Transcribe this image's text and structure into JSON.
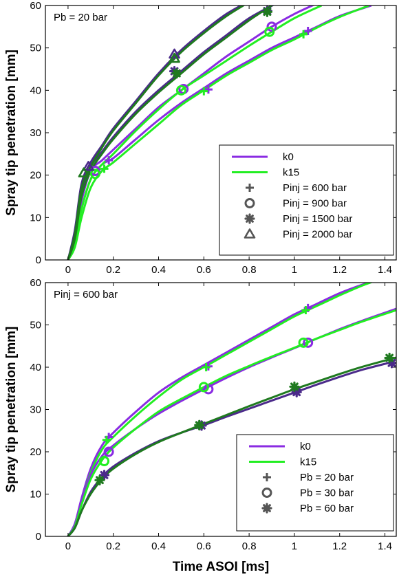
{
  "colors": {
    "k0": "#8a2be2",
    "k15": "#22ee22",
    "k0_dark": "#4b2a8a",
    "k15_dark": "#1f7a1f",
    "marker_legend": "#555555"
  },
  "chart_data": [
    {
      "type": "line",
      "annotation": "Pb = 20 bar",
      "xlabel": "",
      "ylabel": "Spray tip penetration [mm]",
      "xlim": [
        -0.1,
        1.45
      ],
      "ylim": [
        0,
        60
      ],
      "xticks": [
        "0",
        "0.2",
        "0.4",
        "0.6",
        "0.8",
        "1",
        "1.2",
        "1.4"
      ],
      "yticks": [
        "0",
        "10",
        "20",
        "30",
        "40",
        "50",
        "60"
      ],
      "grid": false,
      "legend_position": "bottom-right",
      "legend": {
        "lines": [
          {
            "label": "k0",
            "color": "k0"
          },
          {
            "label": "k15",
            "color": "k15"
          }
        ],
        "markers": [
          {
            "label": "Pinj = 600 bar",
            "marker": "plus"
          },
          {
            "label": "Pinj = 900 bar",
            "marker": "circle"
          },
          {
            "label": "Pinj = 1500 bar",
            "marker": "star"
          },
          {
            "label": "Pinj = 2000 bar",
            "marker": "triangle"
          }
        ]
      },
      "series": [
        {
          "model": "k0",
          "group": "Pinj = 600 bar",
          "color": "k0",
          "marker": "plus",
          "x": [
            0,
            0.03,
            0.06,
            0.1,
            0.15,
            0.2,
            0.3,
            0.4,
            0.5,
            0.6,
            0.7,
            0.8,
            0.9,
            1.0,
            1.1,
            1.2,
            1.34
          ],
          "y": [
            0,
            4,
            12,
            19,
            22.5,
            24,
            28.5,
            33,
            37,
            40.5,
            44,
            47,
            50,
            52.5,
            55,
            57.5,
            60
          ],
          "markers_x": [
            0.18,
            0.62,
            1.06
          ],
          "markers_y": [
            23.5,
            40.2,
            54
          ]
        },
        {
          "model": "k15",
          "group": "Pinj = 600 bar",
          "color": "k15",
          "marker": "plus",
          "x": [
            0,
            0.03,
            0.06,
            0.1,
            0.15,
            0.2,
            0.3,
            0.4,
            0.5,
            0.6,
            0.7,
            0.8,
            0.9,
            1.0,
            1.1,
            1.2,
            1.33
          ],
          "y": [
            0,
            3,
            10,
            17,
            21,
            23,
            27.5,
            32,
            36.5,
            40,
            43.5,
            46.5,
            49.5,
            52,
            54.8,
            57.3,
            60
          ],
          "markers_x": [
            0.16,
            0.6,
            1.04
          ],
          "markers_y": [
            21.5,
            39.8,
            53.2
          ]
        },
        {
          "model": "k0",
          "group": "Pinj = 900 bar",
          "color": "k0",
          "marker": "circle",
          "x": [
            0,
            0.03,
            0.06,
            0.1,
            0.15,
            0.2,
            0.3,
            0.4,
            0.5,
            0.6,
            0.7,
            0.8,
            0.9,
            1.0,
            1.1
          ],
          "y": [
            0,
            5,
            14,
            21,
            23.5,
            26,
            31,
            36,
            40,
            44,
            48,
            51.5,
            55,
            58,
            60.5
          ],
          "markers_x": [
            0.12,
            0.51,
            0.9
          ],
          "markers_y": [
            21,
            40.3,
            55
          ]
        },
        {
          "model": "k15",
          "group": "Pinj = 900 bar",
          "color": "k15",
          "marker": "circle",
          "x": [
            0,
            0.03,
            0.06,
            0.1,
            0.15,
            0.2,
            0.3,
            0.4,
            0.5,
            0.6,
            0.7,
            0.8,
            0.9,
            1.0,
            1.12
          ],
          "y": [
            0,
            4,
            12,
            19,
            22.5,
            25,
            30.5,
            35.5,
            40,
            43.5,
            47,
            50.5,
            53.8,
            57,
            60
          ],
          "markers_x": [
            0.12,
            0.5,
            0.89
          ],
          "markers_y": [
            20.3,
            40,
            53.8
          ]
        },
        {
          "model": "k0",
          "group": "Pinj = 1500 bar",
          "color": "k0_dark",
          "marker": "star",
          "x": [
            0,
            0.03,
            0.06,
            0.1,
            0.15,
            0.2,
            0.3,
            0.4,
            0.5,
            0.6,
            0.7,
            0.8,
            0.92
          ],
          "y": [
            0,
            6,
            16,
            22,
            25.5,
            29,
            35,
            40,
            44.5,
            49,
            53,
            57,
            60.5
          ],
          "markers_x": [
            0.47,
            0.88
          ],
          "markers_y": [
            44.5,
            58.7
          ]
        },
        {
          "model": "k15",
          "group": "Pinj = 1500 bar",
          "color": "k15_dark",
          "marker": "star",
          "x": [
            0,
            0.03,
            0.06,
            0.1,
            0.15,
            0.2,
            0.3,
            0.4,
            0.5,
            0.6,
            0.7,
            0.8,
            0.9
          ],
          "y": [
            0,
            5,
            15,
            21,
            25,
            28.5,
            34.5,
            39.5,
            44,
            48.5,
            52.5,
            56.5,
            60
          ],
          "markers_x": [
            0.48,
            0.88
          ],
          "markers_y": [
            44,
            58.5
          ]
        },
        {
          "model": "k0",
          "group": "Pinj = 2000 bar",
          "color": "k0_dark",
          "marker": "triangle",
          "x": [
            0,
            0.03,
            0.06,
            0.1,
            0.15,
            0.2,
            0.3,
            0.4,
            0.5,
            0.6,
            0.7,
            0.8
          ],
          "y": [
            0,
            7,
            18,
            23,
            27,
            31,
            37.5,
            44,
            49.5,
            54,
            58,
            61
          ],
          "markers_x": [
            0.09,
            0.47
          ],
          "markers_y": [
            22,
            48.5
          ]
        },
        {
          "model": "k15",
          "group": "Pinj = 2000 bar",
          "color": "k15_dark",
          "marker": "triangle",
          "x": [
            0,
            0.03,
            0.06,
            0.1,
            0.15,
            0.2,
            0.3,
            0.4,
            0.5,
            0.6,
            0.7,
            0.79
          ],
          "y": [
            0,
            6,
            17,
            22,
            26.5,
            30.5,
            37,
            43.5,
            49,
            53.5,
            57.5,
            60.5
          ],
          "markers_x": [
            0.07,
            0.47
          ],
          "markers_y": [
            20.5,
            47.5
          ]
        }
      ]
    },
    {
      "type": "line",
      "annotation": "Pinj = 600 bar",
      "xlabel": "Time ASOI [ms]",
      "ylabel": "Spray tip penetration [mm]",
      "xlim": [
        -0.1,
        1.45
      ],
      "ylim": [
        0,
        60
      ],
      "xticks": [
        "0",
        "0.2",
        "0.4",
        "0.6",
        "0.8",
        "1",
        "1.2",
        "1.4"
      ],
      "yticks": [
        "0",
        "10",
        "20",
        "30",
        "40",
        "50",
        "60"
      ],
      "grid": false,
      "legend_position": "bottom-right",
      "legend": {
        "lines": [
          {
            "label": "k0",
            "color": "k0"
          },
          {
            "label": "k15",
            "color": "k15"
          }
        ],
        "markers": [
          {
            "label": "Pb = 20 bar",
            "marker": "plus"
          },
          {
            "label": "Pb = 30 bar",
            "marker": "circle"
          },
          {
            "label": "Pb = 60 bar",
            "marker": "star"
          }
        ]
      },
      "series": [
        {
          "model": "k0",
          "group": "Pb = 20 bar",
          "color": "k0",
          "marker": "plus",
          "x": [
            0,
            0.03,
            0.06,
            0.1,
            0.15,
            0.2,
            0.3,
            0.4,
            0.5,
            0.6,
            0.7,
            0.8,
            0.9,
            1.0,
            1.1,
            1.2,
            1.3,
            1.36
          ],
          "y": [
            0,
            3,
            9,
            16,
            21.5,
            24.5,
            29.5,
            34,
            37.5,
            40.5,
            43.5,
            46.5,
            49.5,
            52.5,
            55,
            57.5,
            59.5,
            60.5
          ],
          "markers_x": [
            0.18,
            0.62,
            1.06
          ],
          "markers_y": [
            23.5,
            40.2,
            54
          ]
        },
        {
          "model": "k15",
          "group": "Pb = 20 bar",
          "color": "k15",
          "marker": "plus",
          "x": [
            0,
            0.03,
            0.06,
            0.1,
            0.15,
            0.2,
            0.3,
            0.4,
            0.5,
            0.6,
            0.7,
            0.8,
            0.9,
            1.0,
            1.1,
            1.2,
            1.3,
            1.35
          ],
          "y": [
            0,
            2.5,
            8,
            15,
            20.5,
            23.5,
            28.5,
            33,
            37,
            40,
            43,
            46,
            49,
            52,
            54.5,
            57,
            59.3,
            60.3
          ],
          "markers_x": [
            0.17,
            0.61,
            1.05
          ],
          "markers_y": [
            22.8,
            40,
            53.5
          ]
        },
        {
          "model": "k0",
          "group": "Pb = 30 bar",
          "color": "k0",
          "marker": "circle",
          "x": [
            0,
            0.03,
            0.06,
            0.1,
            0.15,
            0.2,
            0.3,
            0.4,
            0.5,
            0.6,
            0.7,
            0.8,
            0.9,
            1.0,
            1.1,
            1.2,
            1.3,
            1.45
          ],
          "y": [
            0,
            2.5,
            8,
            14.5,
            19,
            21.5,
            25.5,
            29,
            32,
            34.8,
            37.5,
            40,
            42.3,
            44.5,
            46.8,
            49,
            51,
            53.8
          ],
          "markers_x": [
            0.18,
            0.62,
            1.06
          ],
          "markers_y": [
            20,
            34.8,
            45.8
          ]
        },
        {
          "model": "k15",
          "group": "Pb = 30 bar",
          "color": "k15",
          "marker": "circle",
          "x": [
            0,
            0.03,
            0.06,
            0.1,
            0.15,
            0.2,
            0.3,
            0.4,
            0.5,
            0.6,
            0.7,
            0.8,
            0.9,
            1.0,
            1.1,
            1.2,
            1.3,
            1.45
          ],
          "y": [
            0,
            2.3,
            7.5,
            13.5,
            18,
            21,
            25.5,
            29.5,
            32.5,
            35.3,
            38,
            40.3,
            42.5,
            44.6,
            46.8,
            48.8,
            50.8,
            53.5
          ],
          "markers_x": [
            0.16,
            0.6,
            1.04
          ],
          "markers_y": [
            17.8,
            35.3,
            45.8
          ]
        },
        {
          "model": "k0",
          "group": "Pb = 60 bar",
          "color": "k0_dark",
          "marker": "star",
          "x": [
            0,
            0.03,
            0.06,
            0.1,
            0.15,
            0.2,
            0.3,
            0.4,
            0.5,
            0.6,
            0.7,
            0.8,
            0.9,
            1.0,
            1.1,
            1.2,
            1.3,
            1.43
          ],
          "y": [
            0,
            2,
            6,
            10.5,
            14,
            16.5,
            19.8,
            22.5,
            24.5,
            26.3,
            28.3,
            30.2,
            32.1,
            34,
            35.9,
            37.7,
            39.4,
            41.2
          ],
          "markers_x": [
            0.16,
            0.59,
            1.01,
            1.43
          ],
          "markers_y": [
            14.5,
            26.2,
            34.1,
            41
          ]
        },
        {
          "model": "k15",
          "group": "Pb = 60 bar",
          "color": "k15_dark",
          "marker": "star",
          "x": [
            0,
            0.03,
            0.06,
            0.1,
            0.15,
            0.2,
            0.3,
            0.4,
            0.5,
            0.6,
            0.7,
            0.8,
            0.9,
            1.0,
            1.1,
            1.2,
            1.3,
            1.45
          ],
          "y": [
            0,
            2,
            6,
            10,
            13.5,
            16,
            19.5,
            22.3,
            24.5,
            26.6,
            28.7,
            30.8,
            32.8,
            34.8,
            36.6,
            38.4,
            40.1,
            42.3
          ],
          "markers_x": [
            0.14,
            0.58,
            1.0,
            1.42
          ],
          "markers_y": [
            13.3,
            26.3,
            35.4,
            42.2
          ]
        }
      ]
    }
  ]
}
